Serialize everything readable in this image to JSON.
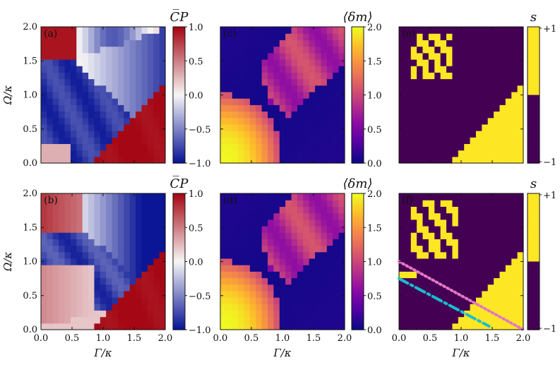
{
  "figure": {
    "x_axis_label": "Γ/κ",
    "y_axis_label": "Ω/κ",
    "axis_ticks": [
      "0.0",
      "0.5",
      "1.0",
      "1.5",
      "2.0"
    ],
    "xlim": [
      0,
      2
    ],
    "ylim": [
      0,
      2
    ],
    "grid_size": 21
  },
  "chart_data": [
    {
      "panel": "(a)",
      "type": "heatmap",
      "quantity": "mean_CP",
      "colormap": "diverging-blue-white-red",
      "colorbar_title": "C̅P",
      "colorbar_ticks": [
        "1.0",
        "0.5",
        "0.0",
        "−0.5",
        "−1.0"
      ],
      "clim": [
        -1,
        1
      ],
      "description_features": {
        "lower_right_triangle_value": 1.0,
        "central_region_value": -1.0,
        "top_left_value": 1.0
      }
    },
    {
      "panel": "(c)",
      "type": "heatmap",
      "quantity": "mean_delta_m",
      "colormap": "plasma",
      "colorbar_title": "⟨δm⟩",
      "colorbar_ticks": [
        "2.0",
        "1.5",
        "1.0",
        "0.5",
        "0.0"
      ],
      "clim": [
        0,
        2
      ],
      "description_features": {
        "lower_left_lobe_max": 2.0,
        "upper_right_band": 1.0,
        "background": 0.0
      }
    },
    {
      "panel": "(e)",
      "type": "heatmap",
      "quantity": "s",
      "colormap": "binary-viridis",
      "colorbar_title": "s",
      "colorbar_ticks": [
        "+1",
        "−1"
      ],
      "clim": [
        -1,
        1
      ]
    },
    {
      "panel": "(b)",
      "type": "heatmap",
      "quantity": "mean_CP",
      "colormap": "diverging-blue-white-red",
      "colorbar_title": "C̅P",
      "colorbar_ticks": [
        "1.0",
        "0.5",
        "0.0",
        "−0.5",
        "−1.0"
      ],
      "clim": [
        -1,
        1
      ]
    },
    {
      "panel": "(d)",
      "type": "heatmap",
      "quantity": "mean_delta_m",
      "colormap": "plasma",
      "colorbar_title": "⟨δm⟩",
      "colorbar_ticks": [
        "2.0",
        "1.5",
        "1.0",
        "0.5",
        "0.0"
      ],
      "clim": [
        0,
        2
      ]
    },
    {
      "panel": "(f)",
      "type": "heatmap",
      "quantity": "s",
      "colormap": "binary-viridis",
      "colorbar_title": "s",
      "colorbar_ticks": [
        "+1",
        "−1"
      ],
      "clim": [
        -1,
        1
      ],
      "lines": [
        {
          "name": "dotted-pink-line",
          "color": "#e377c2",
          "style": "dotted",
          "x": [
            0.0,
            2.0
          ],
          "y": [
            1.0,
            0.0
          ]
        },
        {
          "name": "dash-dot-cyan-line",
          "color": "#17becf",
          "style": "dashdot",
          "x": [
            0.0,
            1.45
          ],
          "y": [
            0.75,
            0.05
          ]
        }
      ]
    }
  ],
  "colors": {
    "blue": "#0a1e9e",
    "red": "#b0101a",
    "white": "#f5f5f5",
    "plasma_low": "#2b0f8a",
    "plasma_high": "#f3e82a",
    "binary_low": "#440154",
    "binary_high": "#fde725"
  }
}
